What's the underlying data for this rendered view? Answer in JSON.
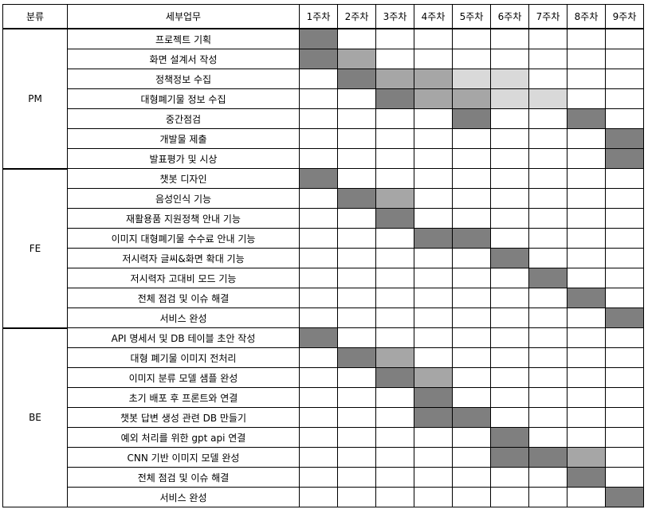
{
  "headers": {
    "category": "분류",
    "task": "세부업무",
    "weeks": [
      "1주차",
      "2주차",
      "3주차",
      "4주차",
      "5주차",
      "6주차",
      "7주차",
      "8주차",
      "9주차"
    ]
  },
  "shade_colors": {
    "dark": "#7f7f7f",
    "mid": "#a6a6a6",
    "light": "#d9d9d9"
  },
  "sections": [
    {
      "name": "PM",
      "tasks": [
        {
          "name": "프로젝트 기획",
          "cells": [
            "dark",
            "",
            "",
            "",
            "",
            "",
            "",
            "",
            ""
          ]
        },
        {
          "name": "화면 설계서 작성",
          "cells": [
            "dark",
            "mid",
            "",
            "",
            "",
            "",
            "",
            "",
            ""
          ]
        },
        {
          "name": "정책정보 수집",
          "cells": [
            "",
            "dark",
            "mid",
            "mid",
            "light",
            "light",
            "",
            "",
            ""
          ]
        },
        {
          "name": "대형폐기물 정보 수집",
          "cells": [
            "",
            "",
            "dark",
            "mid",
            "mid",
            "light",
            "light",
            "",
            ""
          ]
        },
        {
          "name": "중간점검",
          "cells": [
            "",
            "",
            "",
            "",
            "dark",
            "",
            "",
            "dark",
            ""
          ]
        },
        {
          "name": "개발물 제출",
          "cells": [
            "",
            "",
            "",
            "",
            "",
            "",
            "",
            "",
            "dark"
          ]
        },
        {
          "name": "발표평가 및 시상",
          "cells": [
            "",
            "",
            "",
            "",
            "",
            "",
            "",
            "",
            "dark"
          ]
        }
      ]
    },
    {
      "name": "FE",
      "tasks": [
        {
          "name": "챗봇 디자인",
          "cells": [
            "dark",
            "",
            "",
            "",
            "",
            "",
            "",
            "",
            ""
          ]
        },
        {
          "name": "음성인식 기능",
          "cells": [
            "",
            "dark",
            "mid",
            "",
            "",
            "",
            "",
            "",
            ""
          ]
        },
        {
          "name": "재활용품 지원정책 안내 기능",
          "cells": [
            "",
            "",
            "dark",
            "",
            "",
            "",
            "",
            "",
            ""
          ]
        },
        {
          "name": "이미지 대형폐기물 수수료 안내 기능",
          "cells": [
            "",
            "",
            "",
            "dark",
            "dark",
            "",
            "",
            "",
            ""
          ]
        },
        {
          "name": "저시력자 글씨&화면 확대 기능",
          "cells": [
            "",
            "",
            "",
            "",
            "",
            "dark",
            "",
            "",
            ""
          ]
        },
        {
          "name": "저시력자 고대비 모드 기능",
          "cells": [
            "",
            "",
            "",
            "",
            "",
            "",
            "dark",
            "",
            ""
          ]
        },
        {
          "name": "전체 점검 및 이슈 해결",
          "cells": [
            "",
            "",
            "",
            "",
            "",
            "",
            "",
            "dark",
            ""
          ]
        },
        {
          "name": "서비스 완성",
          "cells": [
            "",
            "",
            "",
            "",
            "",
            "",
            "",
            "",
            "dark"
          ]
        }
      ]
    },
    {
      "name": "BE",
      "tasks": [
        {
          "name": "API 명세서 및 DB 테이블 초안 작성",
          "cells": [
            "dark",
            "",
            "",
            "",
            "",
            "",
            "",
            "",
            ""
          ]
        },
        {
          "name": "대형 폐기물 이미지 전처리",
          "cells": [
            "",
            "dark",
            "mid",
            "",
            "",
            "",
            "",
            "",
            ""
          ]
        },
        {
          "name": "이미지 분류 모델 샘플 완성",
          "cells": [
            "",
            "",
            "dark",
            "mid",
            "",
            "",
            "",
            "",
            ""
          ]
        },
        {
          "name": "초기 배포 후 프론트와 연결",
          "cells": [
            "",
            "",
            "",
            "dark",
            "",
            "",
            "",
            "",
            ""
          ]
        },
        {
          "name": "챗봇 답변 생성 관련 DB 만들기",
          "cells": [
            "",
            "",
            "",
            "dark",
            "dark",
            "",
            "",
            "",
            ""
          ]
        },
        {
          "name": "예외 처리를 위한 gpt api 연결",
          "cells": [
            "",
            "",
            "",
            "",
            "",
            "dark",
            "",
            "",
            ""
          ]
        },
        {
          "name": "CNN 기반 이미지 모델 완성",
          "cells": [
            "",
            "",
            "",
            "",
            "",
            "dark",
            "dark",
            "mid",
            ""
          ]
        },
        {
          "name": "전체 점검 및 이슈 해결",
          "cells": [
            "",
            "",
            "",
            "",
            "",
            "",
            "",
            "dark",
            ""
          ]
        },
        {
          "name": "서비스 완성",
          "cells": [
            "",
            "",
            "",
            "",
            "",
            "",
            "",
            "",
            "dark"
          ]
        }
      ]
    }
  ]
}
